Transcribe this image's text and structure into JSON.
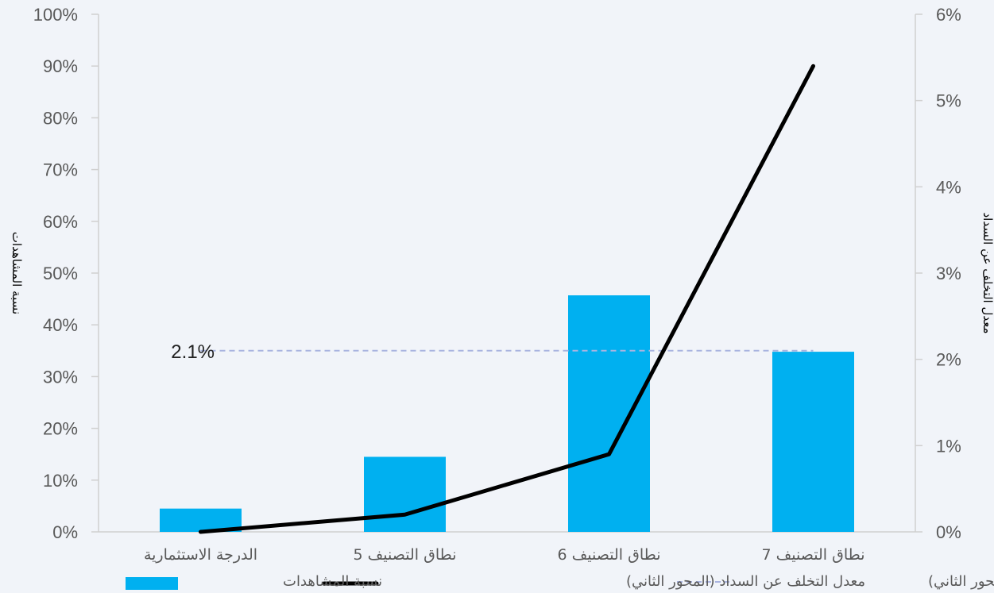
{
  "chart_data": {
    "type": "bar",
    "categories": [
      "الدرجة الاستثمارية",
      "نطاق التصنيف 5",
      "نطاق التصنيف 6",
      "نطاق التصنيف 7"
    ],
    "series": [
      {
        "name": "نسبة المشاهدات",
        "type": "bar",
        "axis": "left",
        "values": [
          4.5,
          14.5,
          45.7,
          34.8
        ],
        "color": "#00b0f0"
      },
      {
        "name": "معدل التخلف عن السداد (المحور الثاني)",
        "type": "line",
        "axis": "right",
        "values": [
          0.0,
          0.2,
          0.9,
          5.4
        ],
        "color": "#000000"
      },
      {
        "name": "المتوسط المرجح (المحور الثاني)",
        "type": "line",
        "style": "dashed",
        "axis": "right",
        "values": [
          2.1,
          2.1,
          2.1,
          2.1
        ],
        "color": "#a9b4e0"
      }
    ],
    "ylabel": "نسبة المشاهدات",
    "y2label": "معدل التخلف عن السداد",
    "ylim": [
      0,
      100
    ],
    "y2lim": [
      0,
      6
    ],
    "yticks": [
      "0%",
      "10%",
      "20%",
      "30%",
      "40%",
      "50%",
      "60%",
      "70%",
      "80%",
      "90%",
      "100%"
    ],
    "y2ticks": [
      "0%",
      "1%",
      "2%",
      "3%",
      "4%",
      "5%",
      "6%"
    ],
    "annotations": [
      {
        "text": "2.1%",
        "axis": "right",
        "value": 2.1
      }
    ],
    "grid": false,
    "legend": "bottom"
  }
}
